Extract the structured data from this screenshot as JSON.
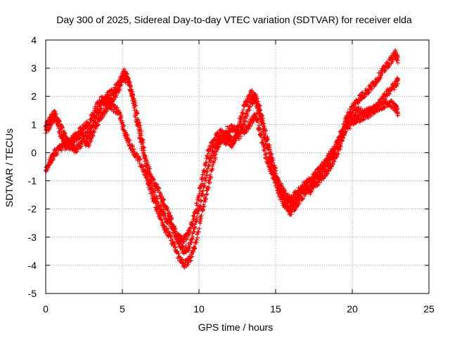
{
  "chart_data": {
    "type": "scatter",
    "title": "Day 300 of 2025, Sidereal Day-to-day VTEC variation (SDTVAR) for receiver elda",
    "xlabel": "GPS time / hours",
    "ylabel": "SDTVAR / TECUs",
    "xlim": [
      0,
      25
    ],
    "ylim": [
      -5,
      4
    ],
    "xticks": [
      "0",
      "5",
      "10",
      "15",
      "20",
      "25"
    ],
    "yticks": [
      "-5",
      "-4",
      "-3",
      "-2",
      "-1",
      "0",
      "1",
      "2",
      "3",
      "4"
    ],
    "grid": true,
    "marker": "plus",
    "color": "#ff0000",
    "series": [
      {
        "x": [
          0.0,
          0.3,
          0.6,
          1.0,
          1.3,
          1.6,
          2.0,
          2.4,
          2.8,
          3.2,
          3.6,
          4.0,
          4.4,
          4.8,
          5.1,
          5.4,
          5.8,
          6.2,
          6.6,
          7.0,
          7.4,
          7.8,
          8.2,
          8.6,
          9.0,
          9.4,
          9.8,
          10.2,
          10.6,
          11.0,
          11.4,
          11.8,
          12.2,
          12.6,
          13.0,
          13.4,
          13.7,
          14.0,
          14.4,
          14.8,
          15.2,
          15.6,
          16.0,
          16.4,
          16.8,
          17.2,
          17.6,
          18.0,
          18.4,
          18.8,
          19.2,
          19.6,
          20.0,
          20.4,
          20.8,
          21.2,
          21.6,
          22.0,
          22.4,
          22.8,
          23.0
        ],
        "y": [
          0.9,
          1.2,
          1.4,
          0.6,
          0.2,
          0.3,
          0.5,
          0.7,
          0.6,
          1.2,
          1.6,
          2.0,
          2.2,
          2.5,
          2.7,
          2.5,
          1.8,
          0.8,
          -0.4,
          -1.0,
          -1.4,
          -1.9,
          -2.4,
          -3.0,
          -3.1,
          -2.8,
          -2.0,
          -1.0,
          0.0,
          0.5,
          0.7,
          0.6,
          0.4,
          0.7,
          1.2,
          1.8,
          2.0,
          1.5,
          0.6,
          -0.3,
          -1.0,
          -1.5,
          -1.7,
          -1.4,
          -1.3,
          -1.4,
          -1.1,
          -0.9,
          -0.6,
          -0.3,
          0.2,
          0.9,
          1.4,
          1.5,
          1.4,
          1.5,
          1.6,
          1.7,
          1.8,
          1.6,
          1.4
        ]
      },
      {
        "x": [
          0.0,
          0.3,
          0.6,
          1.0,
          1.3,
          1.6,
          2.0,
          2.4,
          2.8,
          3.2,
          3.6,
          4.0,
          4.4,
          4.8,
          5.1,
          5.4,
          5.8,
          6.2,
          6.6,
          7.0,
          7.4,
          7.8,
          8.2,
          8.6,
          9.0,
          9.4,
          9.8,
          10.2,
          10.6,
          11.0,
          11.4,
          11.8,
          12.2,
          12.6,
          13.0,
          13.4,
          13.7,
          14.0,
          14.4,
          14.8,
          15.2,
          15.6,
          16.0,
          16.4,
          16.8,
          17.2,
          17.6,
          18.0,
          18.4,
          18.8,
          19.2,
          19.6,
          20.0,
          20.4,
          20.8,
          21.2,
          21.6,
          22.0,
          22.4,
          22.8,
          23.0
        ],
        "y": [
          -0.6,
          -0.3,
          0.0,
          0.2,
          0.3,
          0.4,
          0.6,
          0.9,
          1.0,
          1.5,
          1.9,
          1.8,
          1.6,
          1.4,
          0.8,
          0.4,
          0.0,
          -0.4,
          -0.9,
          -1.6,
          -2.2,
          -2.7,
          -3.1,
          -3.6,
          -4.0,
          -3.8,
          -3.2,
          -2.1,
          -1.2,
          -0.2,
          0.4,
          0.8,
          0.9,
          0.6,
          0.8,
          1.1,
          1.3,
          0.7,
          -0.2,
          -0.8,
          -1.4,
          -1.9,
          -2.1,
          -1.8,
          -1.5,
          -1.2,
          -1.0,
          -0.7,
          -0.2,
          0.1,
          0.5,
          0.8,
          1.1,
          1.2,
          1.3,
          1.4,
          1.6,
          1.9,
          2.2,
          2.4,
          2.6
        ]
      },
      {
        "x": [
          0.0,
          0.3,
          0.6,
          1.0,
          1.3,
          1.6,
          2.0,
          2.4,
          2.8,
          3.2,
          3.6,
          4.0,
          4.4,
          4.8,
          5.1,
          5.4,
          5.8,
          6.2,
          6.6,
          7.0,
          7.4,
          7.8,
          8.2,
          8.6,
          9.0,
          9.4,
          9.8,
          10.2,
          10.6,
          11.0,
          11.4,
          11.8,
          12.2,
          12.6,
          13.0,
          13.4,
          13.7,
          14.0,
          14.4,
          14.8,
          15.2,
          15.6,
          16.0,
          16.4,
          16.8,
          17.2,
          17.6,
          18.0,
          18.4,
          18.8,
          19.2,
          19.6,
          20.0,
          20.4,
          20.8,
          21.2,
          21.6,
          22.0,
          22.4,
          22.8,
          23.0
        ],
        "y": [
          0.8,
          1.0,
          1.3,
          0.9,
          0.5,
          0.2,
          0.1,
          0.4,
          0.3,
          0.9,
          1.3,
          1.6,
          1.9,
          2.3,
          2.9,
          2.6,
          1.5,
          0.4,
          -0.6,
          -1.3,
          -1.9,
          -2.3,
          -2.6,
          -3.1,
          -3.5,
          -3.3,
          -2.5,
          -1.5,
          -0.5,
          0.2,
          0.5,
          0.4,
          0.3,
          1.0,
          1.7,
          2.1,
          1.9,
          1.2,
          0.3,
          -0.6,
          -1.2,
          -1.7,
          -1.9,
          -1.6,
          -1.2,
          -1.0,
          -0.8,
          -0.5,
          -0.3,
          0.0,
          0.6,
          1.2,
          1.6,
          1.9,
          2.1,
          2.3,
          2.6,
          2.9,
          3.2,
          3.5,
          3.3
        ]
      }
    ]
  }
}
